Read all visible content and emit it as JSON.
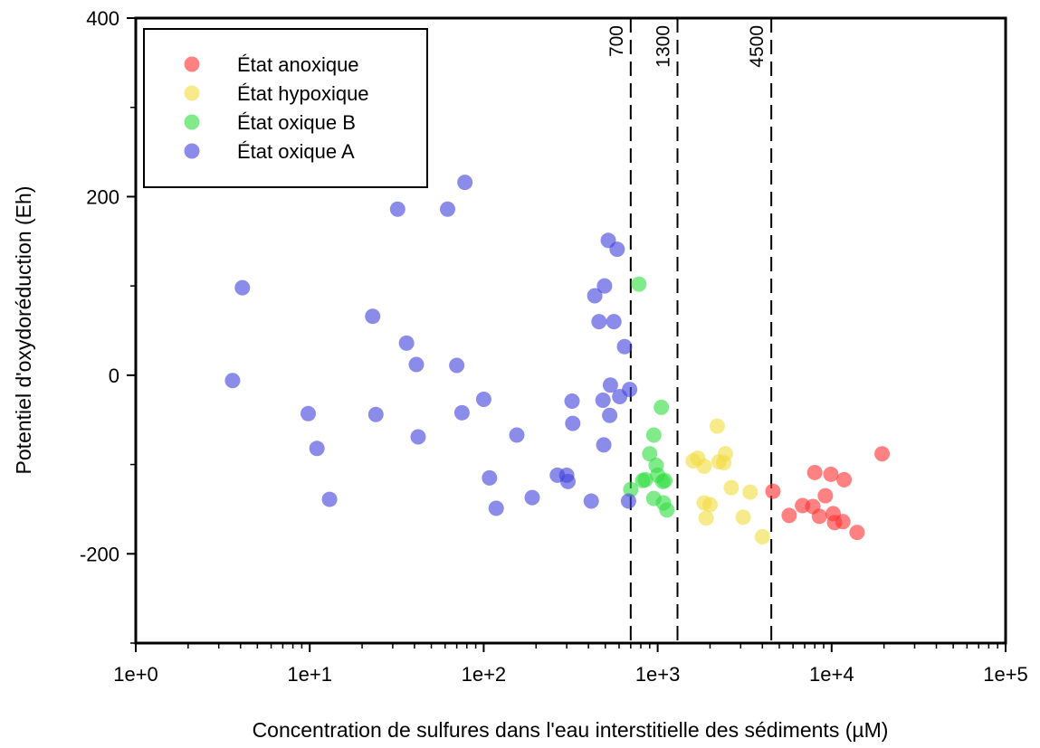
{
  "chart_data": {
    "type": "scatter",
    "title": "",
    "xlabel": "Concentration de sulfures dans l'eau interstitielle des sédiments (µM)",
    "ylabel": "Potentiel d'oxydoréduction (Eh)",
    "xscale": "log",
    "xlim": [
      1,
      100000
    ],
    "ylim": [
      -300,
      400
    ],
    "x_tick_labels": [
      "1e+0",
      "1e+1",
      "1e+2",
      "1e+3",
      "1e+4",
      "1e+5"
    ],
    "x_tick_values": [
      1,
      10,
      100,
      1000,
      10000,
      100000
    ],
    "y_tick_labels": [
      "400",
      "200",
      "0",
      "-200"
    ],
    "y_tick_values": [
      400,
      200,
      0,
      -200
    ],
    "grid": false,
    "legend_position": "top-left",
    "thresholds": [
      {
        "x": 700,
        "label": "700"
      },
      {
        "x": 1300,
        "label": "1300"
      },
      {
        "x": 4500,
        "label": "4500"
      }
    ],
    "series": [
      {
        "name": "État anoxique",
        "color": "#ff3333",
        "points": [
          [
            4600,
            -130
          ],
          [
            5700,
            -157
          ],
          [
            6800,
            -146
          ],
          [
            7800,
            -147
          ],
          [
            8000,
            -109
          ],
          [
            8500,
            -158
          ],
          [
            9200,
            -135
          ],
          [
            9900,
            -111
          ],
          [
            10200,
            -155
          ],
          [
            10400,
            -165
          ],
          [
            11600,
            -164
          ],
          [
            11800,
            -117
          ],
          [
            14000,
            -176
          ],
          [
            19500,
            -88
          ]
        ]
      },
      {
        "name": "État hypoxique",
        "color": "#f2dd44",
        "points": [
          [
            1600,
            -96
          ],
          [
            1700,
            -93
          ],
          [
            1850,
            -102
          ],
          [
            1850,
            -143
          ],
          [
            1900,
            -160
          ],
          [
            2000,
            -145
          ],
          [
            2200,
            -57
          ],
          [
            2250,
            -97
          ],
          [
            2400,
            -98
          ],
          [
            2450,
            -88
          ],
          [
            2650,
            -126
          ],
          [
            3100,
            -159
          ],
          [
            3400,
            -131
          ],
          [
            4000,
            -181
          ]
        ]
      },
      {
        "name": "État oxique B",
        "color": "#33dd44",
        "points": [
          [
            700,
            -128
          ],
          [
            780,
            102
          ],
          [
            820,
            -118
          ],
          [
            850,
            -117
          ],
          [
            900,
            -88
          ],
          [
            950,
            -67
          ],
          [
            950,
            -138
          ],
          [
            980,
            -101
          ],
          [
            1000,
            -112
          ],
          [
            1050,
            -36
          ],
          [
            1070,
            -119
          ],
          [
            1080,
            -143
          ],
          [
            1100,
            -118
          ],
          [
            1130,
            -151
          ]
        ]
      },
      {
        "name": "État oxique A",
        "color": "#4444dd",
        "points": [
          [
            3.6,
            -6
          ],
          [
            4.1,
            98
          ],
          [
            9.8,
            -43
          ],
          [
            11,
            -82
          ],
          [
            13,
            -139
          ],
          [
            23,
            66
          ],
          [
            24,
            -44
          ],
          [
            32,
            186
          ],
          [
            36,
            36
          ],
          [
            41,
            12
          ],
          [
            42,
            -69
          ],
          [
            62,
            186
          ],
          [
            70,
            11
          ],
          [
            75,
            -42
          ],
          [
            78,
            216
          ],
          [
            100,
            -27
          ],
          [
            108,
            -115
          ],
          [
            118,
            -149
          ],
          [
            155,
            -67
          ],
          [
            190,
            -137
          ],
          [
            265,
            -112
          ],
          [
            300,
            -112
          ],
          [
            305,
            -119
          ],
          [
            322,
            -29
          ],
          [
            325,
            -54
          ],
          [
            415,
            -141
          ],
          [
            435,
            89
          ],
          [
            460,
            60
          ],
          [
            485,
            -28
          ],
          [
            490,
            -78
          ],
          [
            495,
            100
          ],
          [
            520,
            151
          ],
          [
            530,
            -45
          ],
          [
            535,
            -11
          ],
          [
            560,
            60
          ],
          [
            585,
            141
          ],
          [
            605,
            -24
          ],
          [
            645,
            32
          ],
          [
            680,
            -141
          ],
          [
            690,
            -16
          ]
        ]
      }
    ]
  }
}
